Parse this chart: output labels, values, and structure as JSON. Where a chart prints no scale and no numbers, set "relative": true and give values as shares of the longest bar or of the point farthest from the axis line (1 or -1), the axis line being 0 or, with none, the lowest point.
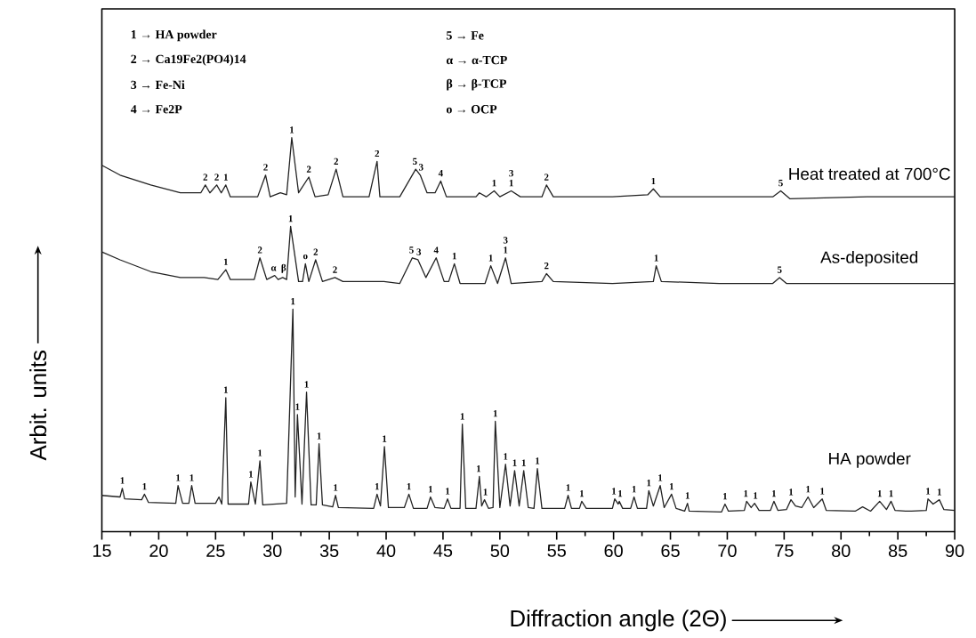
{
  "chart_data": {
    "type": "line",
    "relative": true,
    "tick_labels": "x",
    "xlabel": "Diffraction angle (2Θ)",
    "ylabel": "Arbit. units",
    "xlim": [
      15,
      90
    ],
    "xticks": [
      15,
      20,
      25,
      30,
      35,
      40,
      45,
      50,
      55,
      60,
      65,
      70,
      75,
      80,
      85,
      90
    ],
    "series": [
      {
        "name": "Heat treated at 700°C",
        "color": "#222222",
        "x": [
          15,
          16.6,
          19.3,
          21.9,
          23.7,
          24.1,
          24.5,
          25.1,
          25.5,
          25.9,
          26.3,
          28.7,
          29.4,
          29.8,
          30.7,
          31.25,
          31.7,
          32.3,
          33.2,
          33.75,
          34.9,
          35.6,
          36.2,
          38.5,
          39.2,
          39.45,
          41.2,
          42.6,
          43.0,
          43.6,
          44.3,
          44.8,
          45.3,
          47.9,
          48.2,
          48.8,
          49.5,
          50.0,
          51.0,
          51.8,
          53.7,
          54.1,
          54.7,
          59.9,
          63.0,
          63.5,
          64.1,
          69.3,
          74.0,
          74.7,
          75.5,
          82.3,
          90
        ],
        "values": [
          0.93,
          0.905,
          0.88,
          0.86,
          0.86,
          0.88,
          0.86,
          0.88,
          0.86,
          0.88,
          0.85,
          0.85,
          0.905,
          0.85,
          0.86,
          0.855,
          1.0,
          0.86,
          0.9,
          0.85,
          0.855,
          0.92,
          0.85,
          0.85,
          0.94,
          0.85,
          0.85,
          0.92,
          0.905,
          0.86,
          0.86,
          0.89,
          0.85,
          0.85,
          0.86,
          0.85,
          0.865,
          0.85,
          0.865,
          0.85,
          0.85,
          0.88,
          0.85,
          0.85,
          0.855,
          0.87,
          0.85,
          0.85,
          0.85,
          0.865,
          0.845,
          0.85,
          0.85
        ]
      },
      {
        "name": "As-deposited",
        "color": "#222222",
        "x": [
          15,
          16.6,
          19.3,
          21.9,
          24.0,
          25.2,
          25.9,
          26.3,
          28.4,
          28.9,
          29.5,
          30.2,
          30.5,
          30.9,
          31.25,
          31.6,
          32.3,
          32.65,
          32.9,
          33.2,
          33.8,
          34.4,
          35.5,
          36.2,
          39.8,
          41.2,
          42.3,
          42.8,
          43.5,
          44.4,
          45.1,
          45.5,
          46.0,
          46.5,
          48.7,
          49.2,
          49.8,
          50.5,
          51.0,
          53.7,
          54.1,
          54.7,
          59.9,
          63.5,
          63.75,
          64.2,
          69.3,
          74.0,
          74.6,
          75.2,
          90
        ],
        "values": [
          0.71,
          0.69,
          0.66,
          0.645,
          0.645,
          0.64,
          0.665,
          0.64,
          0.64,
          0.695,
          0.64,
          0.65,
          0.64,
          0.645,
          0.64,
          0.775,
          0.635,
          0.635,
          0.68,
          0.635,
          0.69,
          0.635,
          0.645,
          0.635,
          0.635,
          0.63,
          0.695,
          0.69,
          0.645,
          0.695,
          0.635,
          0.635,
          0.68,
          0.63,
          0.63,
          0.675,
          0.63,
          0.695,
          0.63,
          0.635,
          0.655,
          0.635,
          0.63,
          0.635,
          0.675,
          0.635,
          0.63,
          0.63,
          0.645,
          0.63,
          0.63
        ]
      },
      {
        "name": "HA powder",
        "color": "#222222",
        "x": [
          15,
          16.6,
          16.8,
          17.0,
          18.5,
          18.75,
          19.1,
          21.5,
          21.7,
          22.1,
          22.65,
          22.9,
          23.2,
          25.0,
          25.3,
          25.55,
          25.9,
          26.1,
          27.9,
          28.1,
          28.5,
          28.9,
          29.15,
          31.25,
          31.8,
          32.0,
          32.2,
          32.6,
          33.0,
          33.4,
          33.85,
          34.1,
          34.4,
          35.3,
          35.55,
          35.8,
          38.9,
          39.2,
          39.5,
          39.85,
          40.2,
          41.6,
          42.0,
          42.4,
          43.6,
          43.9,
          44.3,
          45.1,
          45.4,
          45.7,
          46.5,
          46.7,
          47.0,
          47.9,
          48.2,
          48.4,
          48.65,
          49.0,
          49.4,
          49.6,
          50.0,
          50.5,
          50.9,
          51.3,
          51.7,
          52.1,
          52.5,
          53.0,
          53.3,
          53.7,
          55.7,
          56.0,
          56.3,
          57.0,
          57.2,
          57.6,
          59.9,
          60.1,
          60.4,
          60.5,
          60.8,
          61.5,
          61.8,
          62.1,
          62.9,
          63.1,
          63.5,
          64.1,
          64.45,
          65.1,
          65.5,
          66.25,
          66.5,
          66.65,
          69.5,
          69.8,
          70.1,
          71.5,
          71.7,
          72.1,
          72.4,
          72.8,
          73.8,
          74.1,
          74.45,
          75.2,
          75.6,
          76.0,
          76.55,
          77.1,
          77.6,
          78.35,
          78.7,
          81.25,
          81.9,
          82.6,
          83.4,
          84.0,
          84.4,
          84.75,
          85.7,
          86.2,
          87.5,
          87.65,
          88.1,
          88.65,
          89.05,
          90
        ],
        "values": [
          0.092,
          0.088,
          0.11,
          0.083,
          0.081,
          0.095,
          0.074,
          0.072,
          0.117,
          0.072,
          0.072,
          0.117,
          0.072,
          0.072,
          0.088,
          0.07,
          0.34,
          0.07,
          0.07,
          0.126,
          0.07,
          0.18,
          0.068,
          0.072,
          0.565,
          0.088,
          0.297,
          0.07,
          0.354,
          0.068,
          0.068,
          0.223,
          0.068,
          0.063,
          0.092,
          0.061,
          0.059,
          0.095,
          0.065,
          0.216,
          0.061,
          0.061,
          0.095,
          0.059,
          0.059,
          0.088,
          0.061,
          0.059,
          0.083,
          0.059,
          0.059,
          0.273,
          0.059,
          0.059,
          0.14,
          0.065,
          0.081,
          0.059,
          0.061,
          0.28,
          0.061,
          0.171,
          0.065,
          0.155,
          0.065,
          0.155,
          0.061,
          0.059,
          0.16,
          0.059,
          0.059,
          0.092,
          0.059,
          0.059,
          0.077,
          0.059,
          0.059,
          0.083,
          0.07,
          0.077,
          0.059,
          0.059,
          0.088,
          0.059,
          0.059,
          0.104,
          0.065,
          0.117,
          0.061,
          0.095,
          0.059,
          0.052,
          0.072,
          0.052,
          0.05,
          0.07,
          0.052,
          0.054,
          0.077,
          0.061,
          0.072,
          0.054,
          0.054,
          0.077,
          0.054,
          0.056,
          0.081,
          0.065,
          0.061,
          0.088,
          0.061,
          0.083,
          0.054,
          0.052,
          0.063,
          0.052,
          0.077,
          0.056,
          0.077,
          0.054,
          0.052,
          0.052,
          0.054,
          0.083,
          0.07,
          0.081,
          0.056,
          0.054
        ]
      }
    ],
    "annotations": [
      "1 → HA powder",
      "2 → Ca19Fe2(PO4)14",
      "3 → Fe-Ni",
      "4 → Fe2P",
      "5 → Fe",
      "α → α-TCP",
      "β → β-TCP",
      "o → OCP",
      {
        "text": "2",
        "x": 24.1,
        "y": 0.88
      },
      {
        "text": "2",
        "x": 25.1,
        "y": 0.88
      },
      {
        "text": "1",
        "x": 25.9,
        "y": 0.88
      },
      {
        "text": "2",
        "x": 29.4,
        "y": 0.905
      },
      {
        "text": "1",
        "x": 31.7,
        "y": 1.0
      },
      {
        "text": "2",
        "x": 33.2,
        "y": 0.9
      },
      {
        "text": "2",
        "x": 35.6,
        "y": 0.92
      },
      {
        "text": "2",
        "x": 39.2,
        "y": 0.94
      },
      {
        "text": "5",
        "x": 42.6,
        "y": 0.92
      },
      {
        "text": "3",
        "x": 43.0,
        "y": 0.905
      },
      {
        "text": "4",
        "x": 44.8,
        "y": 0.89
      },
      {
        "text": "1",
        "x": 49.5,
        "y": 0.865
      },
      {
        "text": "1",
        "x": 51.0,
        "y": 0.865
      },
      {
        "text": "3",
        "x": 51.0,
        "y": 0.865
      },
      {
        "text": "2",
        "x": 54.1,
        "y": 0.88
      },
      {
        "text": "1",
        "x": 63.5,
        "y": 0.87
      },
      {
        "text": "5",
        "x": 74.7,
        "y": 0.865
      },
      {
        "text": "1",
        "x": 25.9,
        "y": 0.665
      },
      {
        "text": "2",
        "x": 28.9,
        "y": 0.695
      },
      {
        "text": "α",
        "x": 30.2,
        "y": 0.65
      },
      {
        "text": "β",
        "x": 30.9,
        "y": 0.645
      },
      {
        "text": "1",
        "x": 31.6,
        "y": 0.775
      },
      {
        "text": "o",
        "x": 32.9,
        "y": 0.68
      },
      {
        "text": "2",
        "x": 33.8,
        "y": 0.69
      },
      {
        "text": "2",
        "x": 35.5,
        "y": 0.645
      },
      {
        "text": "5",
        "x": 42.3,
        "y": 0.695
      },
      {
        "text": "3",
        "x": 42.8,
        "y": 0.69
      },
      {
        "text": "4",
        "x": 44.4,
        "y": 0.695
      },
      {
        "text": "1",
        "x": 46.0,
        "y": 0.68
      },
      {
        "text": "1",
        "x": 49.2,
        "y": 0.675
      },
      {
        "text": "1",
        "x": 50.5,
        "y": 0.695
      },
      {
        "text": "3",
        "x": 50.5,
        "y": 0.695
      },
      {
        "text": "2",
        "x": 54.1,
        "y": 0.655
      },
      {
        "text": "1",
        "x": 63.75,
        "y": 0.675
      },
      {
        "text": "5",
        "x": 74.6,
        "y": 0.645
      },
      {
        "text": "1",
        "x": 16.8,
        "y": 0.11
      },
      {
        "text": "1",
        "x": 18.75,
        "y": 0.095
      },
      {
        "text": "1",
        "x": 21.7,
        "y": 0.117
      },
      {
        "text": "1",
        "x": 22.9,
        "y": 0.117
      },
      {
        "text": "1",
        "x": 25.9,
        "y": 0.34
      },
      {
        "text": "1",
        "x": 28.1,
        "y": 0.126
      },
      {
        "text": "1",
        "x": 28.9,
        "y": 0.18
      },
      {
        "text": "1",
        "x": 31.8,
        "y": 0.565
      },
      {
        "text": "1",
        "x": 32.2,
        "y": 0.297
      },
      {
        "text": "1",
        "x": 33.0,
        "y": 0.354
      },
      {
        "text": "1",
        "x": 34.1,
        "y": 0.223
      },
      {
        "text": "1",
        "x": 35.55,
        "y": 0.092
      },
      {
        "text": "1",
        "x": 39.2,
        "y": 0.095
      },
      {
        "text": "1",
        "x": 39.85,
        "y": 0.216
      },
      {
        "text": "1",
        "x": 42.0,
        "y": 0.095
      },
      {
        "text": "1",
        "x": 43.9,
        "y": 0.088
      },
      {
        "text": "1",
        "x": 45.4,
        "y": 0.083
      },
      {
        "text": "1",
        "x": 46.7,
        "y": 0.273
      },
      {
        "text": "1",
        "x": 48.2,
        "y": 0.14
      },
      {
        "text": "1",
        "x": 48.65,
        "y": 0.081
      },
      {
        "text": "1",
        "x": 49.6,
        "y": 0.28
      },
      {
        "text": "1",
        "x": 50.5,
        "y": 0.171
      },
      {
        "text": "1",
        "x": 51.3,
        "y": 0.155
      },
      {
        "text": "1",
        "x": 52.1,
        "y": 0.155
      },
      {
        "text": "1",
        "x": 53.3,
        "y": 0.16
      },
      {
        "text": "1",
        "x": 56.0,
        "y": 0.092
      },
      {
        "text": "1",
        "x": 57.2,
        "y": 0.077
      },
      {
        "text": "1",
        "x": 60.1,
        "y": 0.083
      },
      {
        "text": "1",
        "x": 60.5,
        "y": 0.077
      },
      {
        "text": "1",
        "x": 61.8,
        "y": 0.088
      },
      {
        "text": "1",
        "x": 63.1,
        "y": 0.104
      },
      {
        "text": "1",
        "x": 64.1,
        "y": 0.117
      },
      {
        "text": "1",
        "x": 65.1,
        "y": 0.095
      },
      {
        "text": "1",
        "x": 66.5,
        "y": 0.072
      },
      {
        "text": "1",
        "x": 69.8,
        "y": 0.07
      },
      {
        "text": "1",
        "x": 71.7,
        "y": 0.077
      },
      {
        "text": "1",
        "x": 72.4,
        "y": 0.072
      },
      {
        "text": "1",
        "x": 74.1,
        "y": 0.077
      },
      {
        "text": "1",
        "x": 75.6,
        "y": 0.081
      },
      {
        "text": "1",
        "x": 77.1,
        "y": 0.088
      },
      {
        "text": "1",
        "x": 78.35,
        "y": 0.083
      },
      {
        "text": "1",
        "x": 83.4,
        "y": 0.077
      },
      {
        "text": "1",
        "x": 84.4,
        "y": 0.077
      },
      {
        "text": "1",
        "x": 87.65,
        "y": 0.083
      },
      {
        "text": "1",
        "x": 88.65,
        "y": 0.081
      }
    ]
  }
}
